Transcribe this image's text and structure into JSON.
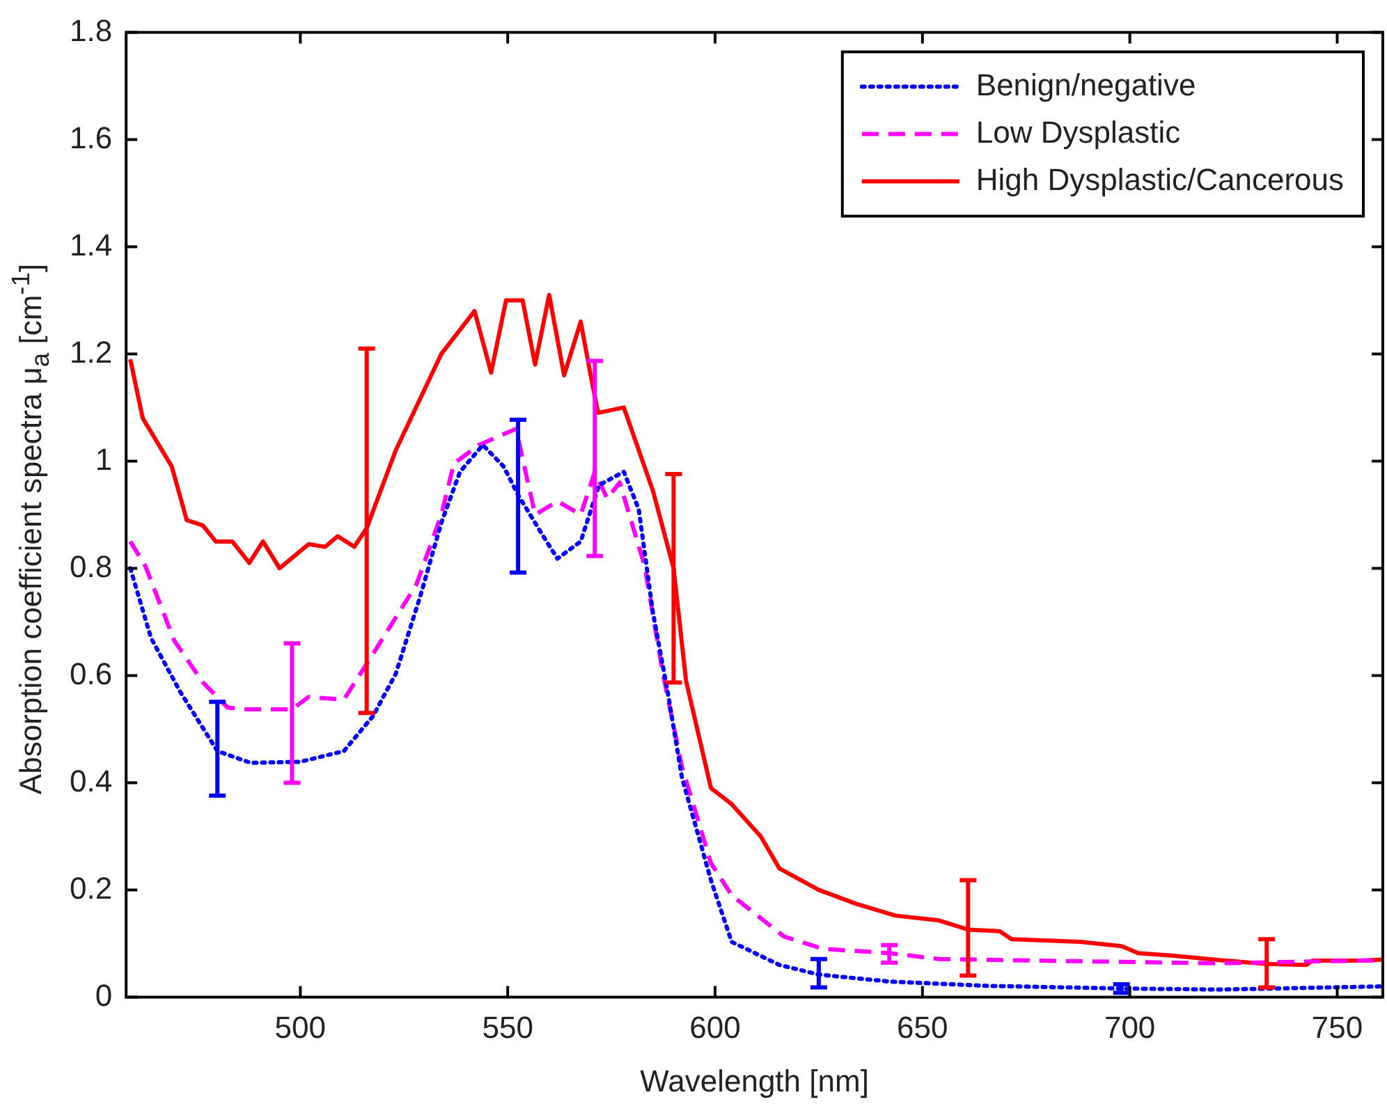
{
  "chart_data": {
    "type": "line",
    "xlabel": "Wavelength [nm]",
    "ylabel": "Absorption coefficient spectra μ$_{a}$ [cm$^{-1}$]",
    "xlim": [
      458,
      761
    ],
    "ylim": [
      0,
      1.8
    ],
    "xticks": [
      500,
      550,
      600,
      650,
      700,
      750
    ],
    "yticks": [
      0,
      0.2,
      0.4,
      0.6,
      0.8,
      1,
      1.2,
      1.4,
      1.6,
      1.8
    ],
    "grid": false,
    "legend": "top right",
    "marker": "none",
    "series": [
      {
        "name": "Benign/negative",
        "color": "#0000ff",
        "line_style": "dotted",
        "x": [
          459,
          464,
          471,
          480,
          488,
          500,
          510.5,
          517.5,
          523,
          529,
          534,
          538.5,
          544,
          549,
          552.5,
          558,
          562,
          567.6,
          572,
          578,
          581.6,
          585,
          588.6,
          592,
          599,
          604,
          615.5,
          625,
          642,
          665.6,
          698,
          721.6,
          761
        ],
        "values": [
          0.8,
          0.67,
          0.57,
          0.459,
          0.437,
          0.439,
          0.459,
          0.524,
          0.603,
          0.75,
          0.885,
          0.98,
          1.03,
          0.99,
          0.937,
          0.867,
          0.818,
          0.85,
          0.955,
          0.98,
          0.91,
          0.718,
          0.568,
          0.41,
          0.218,
          0.103,
          0.06,
          0.042,
          0.029,
          0.021,
          0.016,
          0.014,
          0.02
        ],
        "errors": [
          null,
          null,
          null,
          [
            0.376,
            0.551
          ],
          null,
          null,
          null,
          null,
          null,
          null,
          null,
          null,
          null,
          null,
          [
            0.792,
            1.077
          ],
          null,
          null,
          null,
          null,
          null,
          null,
          null,
          null,
          null,
          null,
          null,
          null,
          [
            0.018,
            0.071
          ],
          null,
          null,
          [
            0.008,
            0.024
          ],
          null,
          null
        ]
      },
      {
        "name": "Low Dysplastic",
        "color": "#ff00ff",
        "line_style": "dashed",
        "x": [
          459,
          462.6,
          469.6,
          476.5,
          482.5,
          487,
          498,
          502,
          510.5,
          517.5,
          528,
          534,
          537,
          543,
          552,
          556.6,
          562,
          567.6,
          571,
          574,
          577,
          583,
          587.5,
          592,
          599,
          604,
          616.6,
          626,
          642,
          654,
          686.5,
          721.6,
          755.5,
          761
        ],
        "values": [
          0.85,
          0.805,
          0.665,
          0.587,
          0.54,
          0.537,
          0.537,
          0.56,
          0.555,
          0.64,
          0.77,
          0.9,
          0.995,
          1.03,
          1.06,
          0.9,
          0.925,
          0.9,
          0.98,
          0.93,
          0.96,
          0.805,
          0.6,
          0.43,
          0.25,
          0.19,
          0.113,
          0.09,
          0.082,
          0.071,
          0.067,
          0.063,
          0.068,
          0.068
        ],
        "errors": [
          null,
          null,
          null,
          null,
          null,
          null,
          [
            0.4,
            0.66
          ],
          null,
          null,
          null,
          null,
          null,
          null,
          null,
          null,
          null,
          null,
          null,
          [
            0.823,
            1.187
          ],
          null,
          null,
          null,
          null,
          null,
          null,
          null,
          null,
          null,
          [
            0.064,
            0.097
          ],
          null,
          null,
          null,
          null,
          null
        ]
      },
      {
        "name": "High Dysplastic/Cancerous",
        "color": "#ff0000",
        "line_style": "solid",
        "x": [
          459,
          462,
          469,
          472.6,
          476.5,
          479.6,
          483.6,
          487.7,
          491,
          495,
          502,
          506,
          509,
          513,
          516,
          523,
          534,
          542,
          546,
          549.6,
          553.6,
          556.6,
          560,
          563.6,
          567.6,
          570,
          571.8,
          578,
          585,
          590,
          593,
          599,
          604,
          611,
          615.5,
          625,
          634,
          643.5,
          654,
          661,
          668.6,
          671.5,
          688,
          698,
          702,
          710.6,
          723,
          733,
          742.6,
          744,
          755.5,
          761
        ],
        "values": [
          1.19,
          1.08,
          0.99,
          0.89,
          0.88,
          0.85,
          0.85,
          0.81,
          0.85,
          0.8,
          0.845,
          0.84,
          0.86,
          0.84,
          0.875,
          1.02,
          1.2,
          1.28,
          1.165,
          1.3,
          1.3,
          1.18,
          1.31,
          1.16,
          1.26,
          1.16,
          1.09,
          1.1,
          0.945,
          0.8,
          0.59,
          0.39,
          0.36,
          0.3,
          0.24,
          0.2,
          0.174,
          0.152,
          0.143,
          0.126,
          0.123,
          0.108,
          0.103,
          0.095,
          0.082,
          0.077,
          0.068,
          0.062,
          0.06,
          0.068,
          0.068,
          0.07
        ],
        "errors": [
          null,
          null,
          null,
          null,
          null,
          null,
          null,
          null,
          null,
          null,
          null,
          null,
          null,
          null,
          [
            0.53,
            1.21
          ],
          null,
          null,
          null,
          null,
          null,
          null,
          null,
          null,
          null,
          null,
          null,
          null,
          null,
          null,
          [
            0.587,
            0.976
          ],
          null,
          null,
          null,
          null,
          null,
          null,
          null,
          null,
          null,
          [
            0.04,
            0.218
          ],
          null,
          null,
          null,
          null,
          null,
          null,
          null,
          [
            0.018,
            0.108
          ],
          null,
          null,
          null,
          null
        ]
      }
    ]
  }
}
